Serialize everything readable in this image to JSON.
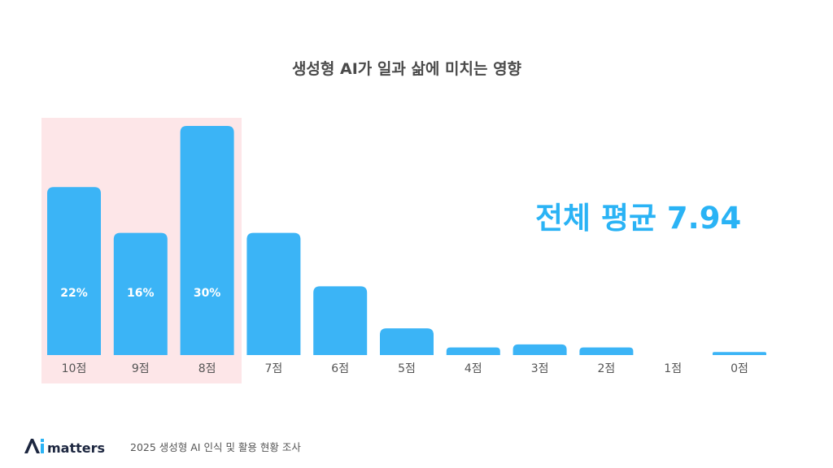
{
  "title": "생성형 AI가 일과 삶에 미치는 영향",
  "average": {
    "label": "전체 평균 7.94"
  },
  "footer": {
    "logo_text": "Ai matters",
    "source": "2025 생성형 AI 인식 및 활용 현황 조사"
  },
  "colors": {
    "bar": "#3bb4f6",
    "highlight": "#fde6e8",
    "average_text": "#2ab3f5",
    "tick_text": "#555555",
    "logo_dark": "#1d2740",
    "logo_blue": "#2ab3f5"
  },
  "chart_data": {
    "type": "bar",
    "categories": [
      "10점",
      "9점",
      "8점",
      "7점",
      "6점",
      "5점",
      "4점",
      "3점",
      "2점",
      "1점",
      "0점"
    ],
    "values": [
      22,
      16,
      30,
      16,
      9,
      3.5,
      1,
      1.4,
      1,
      0,
      0.4
    ],
    "data_labels": [
      "22%",
      "16%",
      "30%",
      "",
      "",
      "",
      "",
      "",
      "",
      "",
      ""
    ],
    "highlighted_categories": [
      "10점",
      "9점",
      "8점"
    ],
    "ylim": [
      0,
      30
    ],
    "xlabel": "",
    "ylabel": "",
    "grid": false,
    "legend": "none"
  }
}
